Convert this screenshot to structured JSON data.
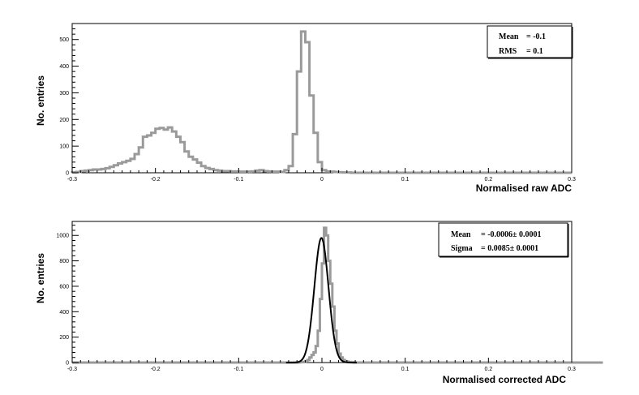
{
  "chart_data": [
    {
      "type": "histogram",
      "xlabel": "Normalised raw ADC",
      "ylabel": "No. entries",
      "xlim": [
        -0.3,
        0.3
      ],
      "ylim": [
        0,
        560
      ],
      "x_ticks": [
        -0.3,
        -0.2,
        -0.1,
        0,
        0.1,
        0.2,
        0.3
      ],
      "y_ticks": [
        0,
        100,
        200,
        300,
        400,
        500
      ],
      "x_tick_labels": [
        "-0.3",
        "-0.2",
        "-0.1",
        "0",
        "0.1",
        "0.2",
        "0.3"
      ],
      "y_tick_labels": [
        "0",
        "100",
        "200",
        "300",
        "400",
        "500"
      ],
      "bin_width": 0.005,
      "x_start": -0.3,
      "series": [
        {
          "color": "#9a9a9a",
          "values": [
            2,
            3,
            6,
            8,
            10,
            12,
            12,
            14,
            17,
            22,
            28,
            35,
            40,
            45,
            52,
            70,
            95,
            135,
            140,
            150,
            165,
            168,
            162,
            170,
            155,
            135,
            115,
            80,
            60,
            50,
            38,
            25,
            18,
            14,
            10,
            8,
            6,
            6,
            5,
            5,
            4,
            4,
            4,
            5,
            8,
            10,
            6,
            5,
            4,
            4,
            3,
            10,
            25,
            145,
            380,
            530,
            490,
            290,
            150,
            40,
            10,
            5,
            4,
            3,
            2,
            1,
            1,
            0,
            0,
            0,
            0,
            0,
            0,
            0,
            0,
            0,
            0,
            0,
            0,
            0,
            0,
            0,
            0,
            0,
            0,
            0,
            0,
            0,
            0,
            0,
            0,
            0,
            0,
            0,
            0,
            0,
            0,
            0,
            0,
            0,
            0,
            0,
            0,
            0,
            0,
            0,
            0,
            0,
            0,
            0,
            0,
            0,
            0,
            0,
            0,
            0,
            0,
            0,
            0,
            0
          ]
        }
      ],
      "stats": [
        {
          "label": "Mean",
          "value": "= -0.1"
        },
        {
          "label": "RMS",
          "value": "= 0.1"
        }
      ]
    },
    {
      "type": "histogram",
      "xlabel": "Normalised corrected ADC",
      "ylabel": "No. entries",
      "xlim": [
        -0.3,
        0.3
      ],
      "ylim": [
        0,
        1110
      ],
      "x_ticks": [
        -0.3,
        -0.2,
        -0.1,
        0,
        0.1,
        0.2,
        0.3
      ],
      "y_ticks": [
        0,
        200,
        400,
        600,
        800,
        1000
      ],
      "x_tick_labels": [
        "-0.3",
        "-0.2",
        "-0.1",
        "0",
        "0.1",
        "0.2",
        "0.3"
      ],
      "y_tick_labels": [
        "0",
        "200",
        "400",
        "600",
        "800",
        "1000"
      ],
      "bin_width": 0.0025,
      "x_start": -0.3,
      "series": [
        {
          "color": "#9a9a9a",
          "values": [
            0,
            0,
            0,
            0,
            0,
            0,
            0,
            0,
            0,
            0,
            0,
            0,
            0,
            0,
            0,
            0,
            0,
            0,
            0,
            0,
            0,
            0,
            0,
            0,
            0,
            0,
            0,
            0,
            0,
            0,
            0,
            0,
            0,
            0,
            0,
            0,
            0,
            0,
            0,
            0,
            0,
            0,
            0,
            0,
            0,
            0,
            0,
            0,
            0,
            0,
            0,
            0,
            0,
            0,
            0,
            0,
            0,
            0,
            0,
            0,
            0,
            0,
            0,
            0,
            0,
            0,
            0,
            0,
            0,
            0,
            0,
            0,
            0,
            0,
            0,
            0,
            0,
            0,
            0,
            0,
            0,
            0,
            0,
            0,
            0,
            0,
            0,
            0,
            0,
            0,
            0,
            0,
            0,
            0,
            0,
            0,
            0,
            0,
            0,
            0,
            0,
            0,
            0,
            0,
            0,
            0,
            0,
            0,
            0,
            2,
            3,
            5,
            10,
            20,
            40,
            60,
            80,
            130,
            250,
            500,
            780,
            1060,
            1000,
            800,
            620,
            440,
            250,
            150,
            70,
            40,
            20,
            10,
            6,
            4,
            2,
            1,
            0,
            0,
            0,
            0,
            0,
            0,
            0,
            0,
            0,
            0,
            0,
            0,
            0,
            0,
            0,
            0,
            0,
            0,
            0,
            0,
            0,
            0,
            0,
            0,
            0,
            0,
            0,
            0,
            0,
            0,
            0,
            0,
            0,
            0,
            0,
            0,
            0,
            0,
            0,
            0,
            0,
            0,
            0,
            0,
            0,
            0,
            0,
            0,
            0,
            0,
            0,
            0,
            0,
            0,
            0,
            0,
            0,
            0,
            0,
            0,
            0,
            0,
            0,
            0,
            0,
            0,
            0,
            0,
            0,
            0,
            0,
            0,
            0,
            0,
            0,
            0,
            0,
            0,
            0,
            0,
            0,
            0,
            0,
            0,
            0,
            0,
            0,
            0,
            0,
            0,
            0,
            0,
            0,
            0,
            0,
            0,
            0,
            0,
            0,
            0,
            0,
            0,
            0,
            0,
            0,
            0,
            0,
            0,
            0,
            0,
            0,
            0,
            0,
            0,
            0,
            0,
            0,
            0,
            0
          ]
        },
        {
          "type": "fit",
          "color": "#000000",
          "function": "gaussian",
          "mean": -0.0006,
          "sigma": 0.0085,
          "amplitude": 980
        }
      ],
      "stats": [
        {
          "label": "Mean",
          "value": "= -0.0006± 0.0001"
        },
        {
          "label": "Sigma",
          "value": "= 0.0085± 0.0001"
        }
      ]
    }
  ]
}
